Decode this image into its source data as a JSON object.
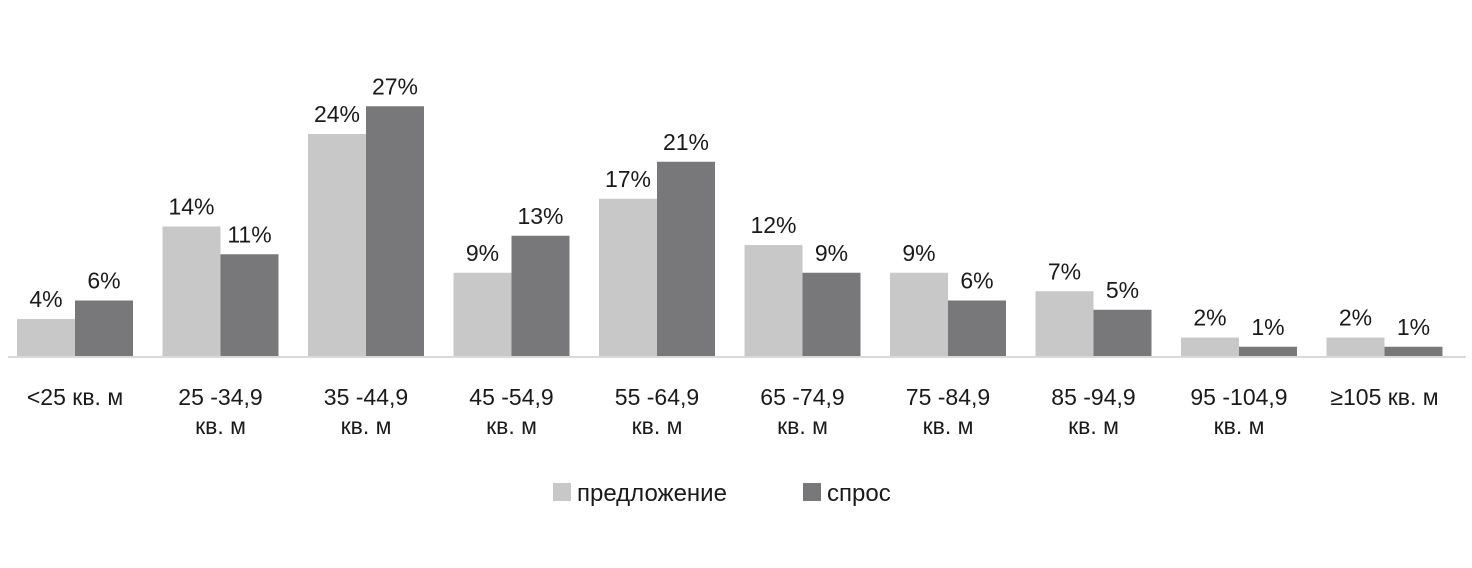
{
  "chart_data": {
    "type": "bar",
    "title": "",
    "xlabel": "",
    "ylabel": "",
    "ylim": [
      0,
      27
    ],
    "grid": false,
    "legend_position": "bottom",
    "categories": [
      [
        "<25 кв. м"
      ],
      [
        "25 -34,9",
        "кв. м"
      ],
      [
        "35 -44,9",
        "кв. м"
      ],
      [
        "45 -54,9",
        "кв. м"
      ],
      [
        "55 -64,9",
        "кв. м"
      ],
      [
        "65 -74,9",
        "кв. м"
      ],
      [
        "75 -84,9",
        "кв. м"
      ],
      [
        "85 -94,9",
        "кв. м"
      ],
      [
        "95 -104,9",
        "кв. м"
      ],
      [
        "≥105 кв. м"
      ]
    ],
    "series": [
      {
        "name": "предложение",
        "color": "#c8c8c9",
        "values": [
          4,
          14,
          24,
          9,
          17,
          12,
          9,
          7,
          2,
          2
        ],
        "labels": [
          "4%",
          "14%",
          "24%",
          "9%",
          "17%",
          "12%",
          "9%",
          "7%",
          "2%",
          "2%"
        ]
      },
      {
        "name": "спрос",
        "color": "#78787b",
        "values": [
          6,
          11,
          27,
          13,
          21,
          9,
          6,
          5,
          1,
          1
        ],
        "labels": [
          "6%",
          "11%",
          "27%",
          "13%",
          "21%",
          "9%",
          "6%",
          "5%",
          "1%",
          "1%"
        ]
      }
    ]
  }
}
